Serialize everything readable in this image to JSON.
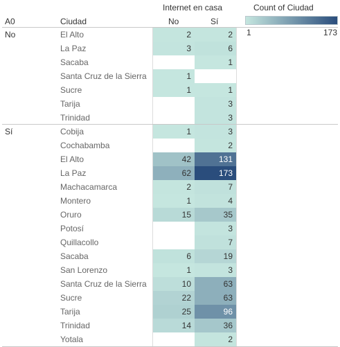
{
  "chart_data": {
    "type": "heatmap",
    "headers": {
      "row_dim1": "A0",
      "row_dim2": "Ciudad",
      "column_group": "Internet en casa",
      "columns": [
        "No",
        "Sí"
      ]
    },
    "legend": {
      "title": "Count of Ciudad",
      "min_label": "1",
      "max_label": "173",
      "min": 1,
      "max": 173
    },
    "colors": {
      "low": "#c5e6df",
      "high": "#2a4d7c"
    },
    "groups": [
      {
        "label": "No",
        "rows": [
          {
            "city": "El Alto",
            "no": 2,
            "si": 2
          },
          {
            "city": "La Paz",
            "no": 3,
            "si": 6
          },
          {
            "city": "Sacaba",
            "no": null,
            "si": 1
          },
          {
            "city": "Santa Cruz de la Sierra",
            "no": 1,
            "si": null
          },
          {
            "city": "Sucre",
            "no": 1,
            "si": 1
          },
          {
            "city": "Tarija",
            "no": null,
            "si": 3
          },
          {
            "city": "Trinidad",
            "no": null,
            "si": 3
          }
        ]
      },
      {
        "label": "Sí",
        "rows": [
          {
            "city": "Cobija",
            "no": 1,
            "si": 3
          },
          {
            "city": "Cochabamba",
            "no": null,
            "si": 2
          },
          {
            "city": "El Alto",
            "no": 42,
            "si": 131
          },
          {
            "city": "La Paz",
            "no": 62,
            "si": 173
          },
          {
            "city": "Machacamarca",
            "no": 2,
            "si": 7
          },
          {
            "city": "Montero",
            "no": 1,
            "si": 4
          },
          {
            "city": "Oruro",
            "no": 15,
            "si": 35
          },
          {
            "city": "Potosí",
            "no": null,
            "si": 3
          },
          {
            "city": "Quillacollo",
            "no": null,
            "si": 7
          },
          {
            "city": "Sacaba",
            "no": 6,
            "si": 19
          },
          {
            "city": "San Lorenzo",
            "no": 1,
            "si": 3
          },
          {
            "city": "Santa Cruz de la Sierra",
            "no": 10,
            "si": 63
          },
          {
            "city": "Sucre",
            "no": 22,
            "si": 63
          },
          {
            "city": "Tarija",
            "no": 25,
            "si": 96
          },
          {
            "city": "Trinidad",
            "no": 14,
            "si": 36
          },
          {
            "city": "Yotala",
            "no": null,
            "si": 2
          }
        ]
      }
    ]
  }
}
